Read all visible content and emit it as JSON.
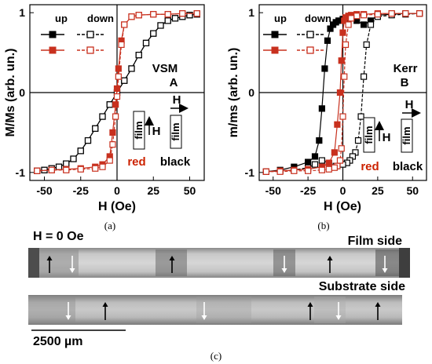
{
  "chart_data": [
    {
      "type": "line",
      "panel": "a",
      "caption": "(a)",
      "xlabel": "H (Oe)",
      "ylabel": "M/Ms (arb. un.)",
      "xlim": [
        -60,
        60
      ],
      "ylim": [
        -1.1,
        1.1
      ],
      "xticks": [
        "-50",
        "-25",
        "0",
        "25",
        "50"
      ],
      "yticks": [
        "-1",
        "0",
        "1"
      ],
      "legend": {
        "up": "up",
        "down": "down"
      },
      "annotations": {
        "method": "VSM",
        "sample": "A",
        "field": "H",
        "film": "film",
        "red": "red",
        "black": "black"
      },
      "series": [
        {
          "name": "black",
          "color": "#000000",
          "up_x": [
            -55,
            -50,
            -45,
            -40,
            -35,
            -30,
            -25,
            -20,
            -15,
            -10,
            -5,
            0,
            5,
            10,
            15,
            20,
            25,
            30,
            35,
            40,
            45,
            50,
            55
          ],
          "up_y": [
            -0.98,
            -0.97,
            -0.95,
            -0.93,
            -0.89,
            -0.83,
            -0.73,
            -0.6,
            -0.45,
            -0.3,
            -0.15,
            0.0,
            0.15,
            0.3,
            0.47,
            0.62,
            0.74,
            0.84,
            0.9,
            0.93,
            0.95,
            0.97,
            0.98
          ],
          "down_x": [
            55,
            50,
            45,
            40,
            35,
            30,
            25,
            20,
            15,
            10,
            5,
            0,
            -5,
            -10,
            -15,
            -20,
            -25,
            -30,
            -35,
            -40,
            -45,
            -50,
            -55
          ],
          "down_y": [
            0.98,
            0.97,
            0.95,
            0.93,
            0.9,
            0.84,
            0.74,
            0.62,
            0.47,
            0.3,
            0.15,
            0.0,
            -0.15,
            -0.3,
            -0.45,
            -0.6,
            -0.73,
            -0.83,
            -0.89,
            -0.93,
            -0.95,
            -0.97,
            -0.98
          ]
        },
        {
          "name": "red",
          "color": "#c8301e",
          "up_x": [
            -55,
            -45,
            -35,
            -25,
            -15,
            -10,
            -5,
            -3,
            -1,
            0,
            1,
            3,
            5,
            10,
            15,
            25,
            35,
            45,
            55
          ],
          "up_y": [
            -0.98,
            -0.97,
            -0.96,
            -0.95,
            -0.93,
            -0.9,
            -0.8,
            -0.5,
            -0.15,
            0.05,
            0.3,
            0.65,
            0.85,
            0.95,
            0.97,
            0.98,
            0.98,
            0.99,
            0.99
          ],
          "down_x": [
            55,
            45,
            35,
            25,
            15,
            10,
            5,
            3,
            1,
            0,
            -1,
            -3,
            -5,
            -10,
            -15,
            -25,
            -35,
            -45,
            -55
          ],
          "down_y": [
            0.99,
            0.99,
            0.98,
            0.98,
            0.97,
            0.95,
            0.85,
            0.6,
            0.2,
            -0.05,
            -0.3,
            -0.65,
            -0.85,
            -0.93,
            -0.95,
            -0.96,
            -0.97,
            -0.97,
            -0.98
          ]
        }
      ]
    },
    {
      "type": "line",
      "panel": "b",
      "caption": "(b)",
      "xlabel": "H (Oe)",
      "ylabel": "m/ms (arb. un.)",
      "xlim": [
        -60,
        60
      ],
      "ylim": [
        -1.1,
        1.1
      ],
      "xticks": [
        "-50",
        "-25",
        "0",
        "25",
        "50"
      ],
      "yticks": [
        "-1",
        "0",
        "1"
      ],
      "legend": {
        "up": "up",
        "down": "down"
      },
      "annotations": {
        "method": "Kerr",
        "sample": "B",
        "field": "H",
        "film": "film",
        "red": "red",
        "black": "black"
      },
      "series": [
        {
          "name": "black",
          "color": "#000000",
          "up_x": [
            -55,
            -45,
            -35,
            -25,
            -20,
            -17,
            -15,
            -13,
            -11,
            -9,
            -7,
            -5,
            -3,
            0,
            5,
            10,
            15,
            20,
            25,
            35,
            45,
            55
          ],
          "up_y": [
            -0.99,
            -0.97,
            -0.93,
            -0.87,
            -0.8,
            -0.6,
            -0.2,
            0.3,
            0.65,
            0.8,
            0.85,
            0.88,
            0.9,
            0.92,
            0.93,
            0.9,
            0.85,
            0.9,
            0.97,
            0.98,
            0.99,
            0.99
          ],
          "down_x": [
            55,
            45,
            35,
            25,
            20,
            17,
            15,
            13,
            11,
            9,
            7,
            5,
            3,
            0,
            -5,
            -10,
            -15,
            -20,
            -25,
            -35,
            -45,
            -55
          ],
          "down_y": [
            0.99,
            0.98,
            0.97,
            0.95,
            0.85,
            0.6,
            0.2,
            -0.3,
            -0.6,
            -0.75,
            -0.8,
            -0.85,
            -0.88,
            -0.9,
            -0.92,
            -0.88,
            -0.85,
            -0.9,
            -0.94,
            -0.97,
            -0.98,
            -0.99
          ]
        },
        {
          "name": "red",
          "color": "#c8301e",
          "up_x": [
            -55,
            -45,
            -35,
            -25,
            -15,
            -10,
            -6,
            -4,
            -2,
            -1,
            0,
            1,
            2,
            4,
            6,
            10,
            15,
            25,
            35,
            45,
            55
          ],
          "up_y": [
            -0.99,
            -0.98,
            -0.97,
            -0.96,
            -0.93,
            -0.88,
            -0.75,
            -0.4,
            0.0,
            0.4,
            0.75,
            0.9,
            0.94,
            0.96,
            0.97,
            0.98,
            0.98,
            0.99,
            0.99,
            0.99,
            0.99
          ],
          "down_x": [
            55,
            45,
            35,
            25,
            15,
            10,
            6,
            4,
            2,
            1,
            0,
            -1,
            -2,
            -4,
            -6,
            -10,
            -15,
            -25,
            -35,
            -45,
            -55
          ],
          "down_y": [
            0.99,
            0.99,
            0.99,
            0.98,
            0.97,
            0.96,
            0.93,
            0.85,
            0.6,
            0.2,
            -0.3,
            -0.7,
            -0.85,
            -0.92,
            -0.94,
            -0.96,
            -0.97,
            -0.98,
            -0.98,
            -0.99,
            -0.99
          ]
        }
      ]
    }
  ],
  "panel_c": {
    "caption": "(c)",
    "field_label": "H = 0 Oe",
    "film_side_label": "Film side",
    "substrate_side_label": "Substrate side",
    "scale_bar_label": "2500 µm",
    "film_side_arrows": [
      "up",
      "down",
      "up",
      "down",
      "up",
      "down"
    ],
    "substrate_side_arrows": [
      "down",
      "up",
      "down",
      "up",
      "down",
      "up"
    ]
  }
}
